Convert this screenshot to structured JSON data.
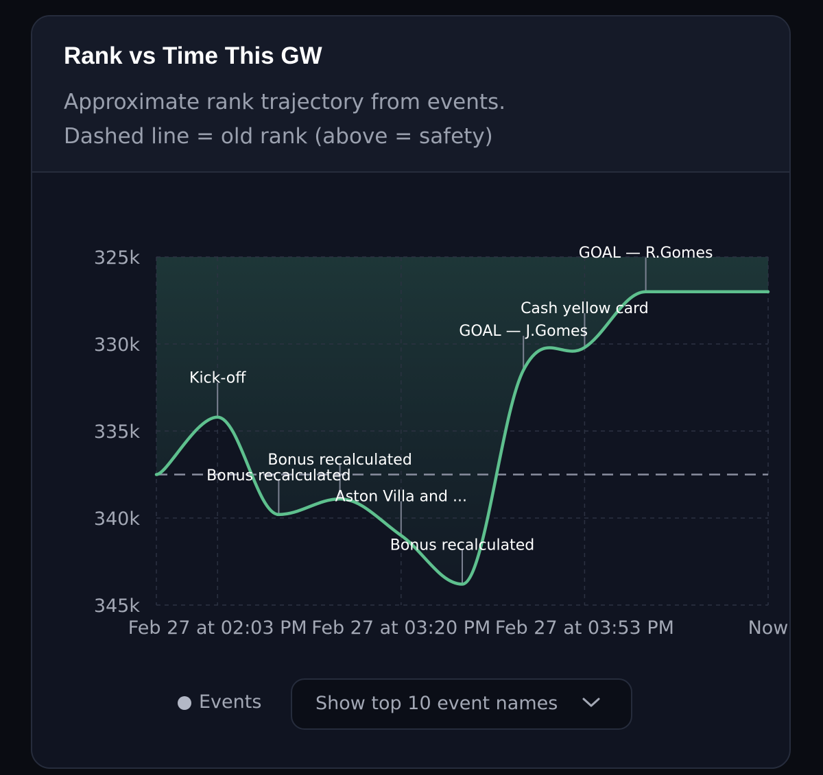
{
  "card": {
    "title": "Rank vs Time This GW",
    "subtitle_line1": "Approximate rank trajectory from events.",
    "subtitle_line2": "Dashed line = old rank (above = safety)"
  },
  "legend": {
    "label": "Events"
  },
  "dropdown": {
    "selected": "Show top 10 event names",
    "icon": "chevron-down-icon"
  },
  "colors": {
    "line": "#5ec08e",
    "fill_top": "#1f3a3a",
    "dashed": "#8a8fa0",
    "grid": "#2c3242",
    "event_marker": "#7c8292"
  },
  "chart_data": {
    "type": "line",
    "y_inverted": true,
    "ylim": [
      325000,
      345000
    ],
    "yticks": [
      325000,
      330000,
      335000,
      340000,
      345000
    ],
    "ytick_labels": [
      "325k",
      "330k",
      "335k",
      "340k",
      "345k"
    ],
    "xticks": [
      1,
      4,
      7,
      10
    ],
    "xtick_labels": [
      "Feb 27 at 02:03 PM",
      "Feb 27 at 03:20 PM",
      "Feb 27 at 03:53 PM",
      "Now"
    ],
    "xlim": [
      0,
      10
    ],
    "old_rank": 337500,
    "grid": true,
    "series": [
      {
        "x": [
          0,
          1,
          2,
          3,
          4,
          5,
          6,
          7,
          8,
          9,
          10
        ],
        "y": [
          337500,
          334200,
          339800,
          338900,
          341000,
          343800,
          331500,
          330200,
          327000,
          327000,
          327000
        ]
      }
    ],
    "annotations": [
      {
        "x": 1,
        "rank": 334200,
        "label": "Kick-off"
      },
      {
        "x": 2,
        "rank": 339800,
        "label": "Bonus recalculated"
      },
      {
        "x": 3,
        "rank": 338900,
        "label": "Bonus recalculated"
      },
      {
        "x": 4,
        "rank": 341000,
        "label": "Aston Villa and ..."
      },
      {
        "x": 5,
        "rank": 343800,
        "label": "Bonus recalculated"
      },
      {
        "x": 6,
        "rank": 331500,
        "label": "GOAL — J.Gomes"
      },
      {
        "x": 7,
        "rank": 330200,
        "label": "Cash yellow card"
      },
      {
        "x": 8,
        "rank": 327000,
        "label": "GOAL — R.Gomes"
      }
    ]
  }
}
